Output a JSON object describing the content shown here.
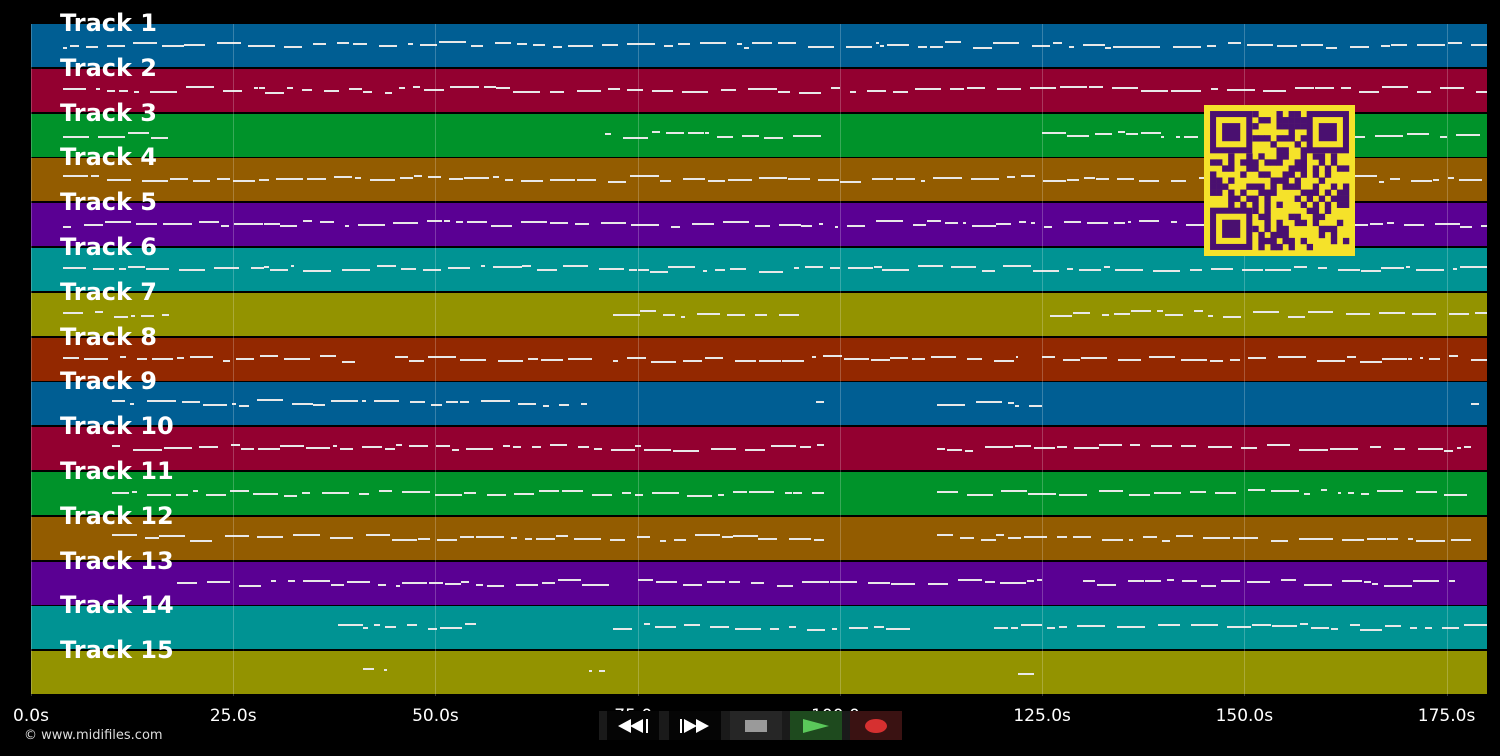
{
  "tracks": [
    {
      "label": "Track 1",
      "color": "#005e93"
    },
    {
      "label": "Track 2",
      "color": "#930030"
    },
    {
      "label": "Track 3",
      "color": "#00932a"
    },
    {
      "label": "Track 4",
      "color": "#935c00"
    },
    {
      "label": "Track 5",
      "color": "#5a0093"
    },
    {
      "label": "Track 6",
      "color": "#009393"
    },
    {
      "label": "Track 7",
      "color": "#939300"
    },
    {
      "label": "Track 8",
      "color": "#932800"
    },
    {
      "label": "Track 9",
      "color": "#005e93"
    },
    {
      "label": "Track 10",
      "color": "#930030"
    },
    {
      "label": "Track 11",
      "color": "#00932a"
    },
    {
      "label": "Track 12",
      "color": "#935c00"
    },
    {
      "label": "Track 13",
      "color": "#5a0093"
    },
    {
      "label": "Track 14",
      "color": "#009393"
    },
    {
      "label": "Track 15",
      "color": "#939300"
    }
  ],
  "timeline": {
    "duration_s": 180,
    "ticks": [
      {
        "value": 0,
        "label": "0.0s"
      },
      {
        "value": 25,
        "label": "25.0s"
      },
      {
        "value": 50,
        "label": "50.0s"
      },
      {
        "value": 75,
        "label": "75.0s"
      },
      {
        "value": 100,
        "label": "100.0s"
      },
      {
        "value": 125,
        "label": "125.0s"
      },
      {
        "value": 150,
        "label": "150.0s"
      },
      {
        "value": 175,
        "label": "175.0s"
      }
    ]
  },
  "footer": {
    "copyright": "© www.midifiles.com"
  },
  "controls": [
    {
      "name": "rewind-button",
      "icon": "rewind-icon",
      "color": "#ffffff"
    },
    {
      "name": "fast-forward-button",
      "icon": "fast-forward-icon",
      "color": "#ffffff"
    },
    {
      "name": "stop-button",
      "icon": "stop-icon",
      "color": "#9a9a9a"
    },
    {
      "name": "play-button",
      "icon": "play-icon",
      "color": "#5ac85a"
    },
    {
      "name": "record-button",
      "icon": "record-icon",
      "color": "#d63030"
    }
  ],
  "qr_code": {
    "icon": "qr-code-icon",
    "fg": "#4a1070",
    "bg": "#f5e22a"
  }
}
